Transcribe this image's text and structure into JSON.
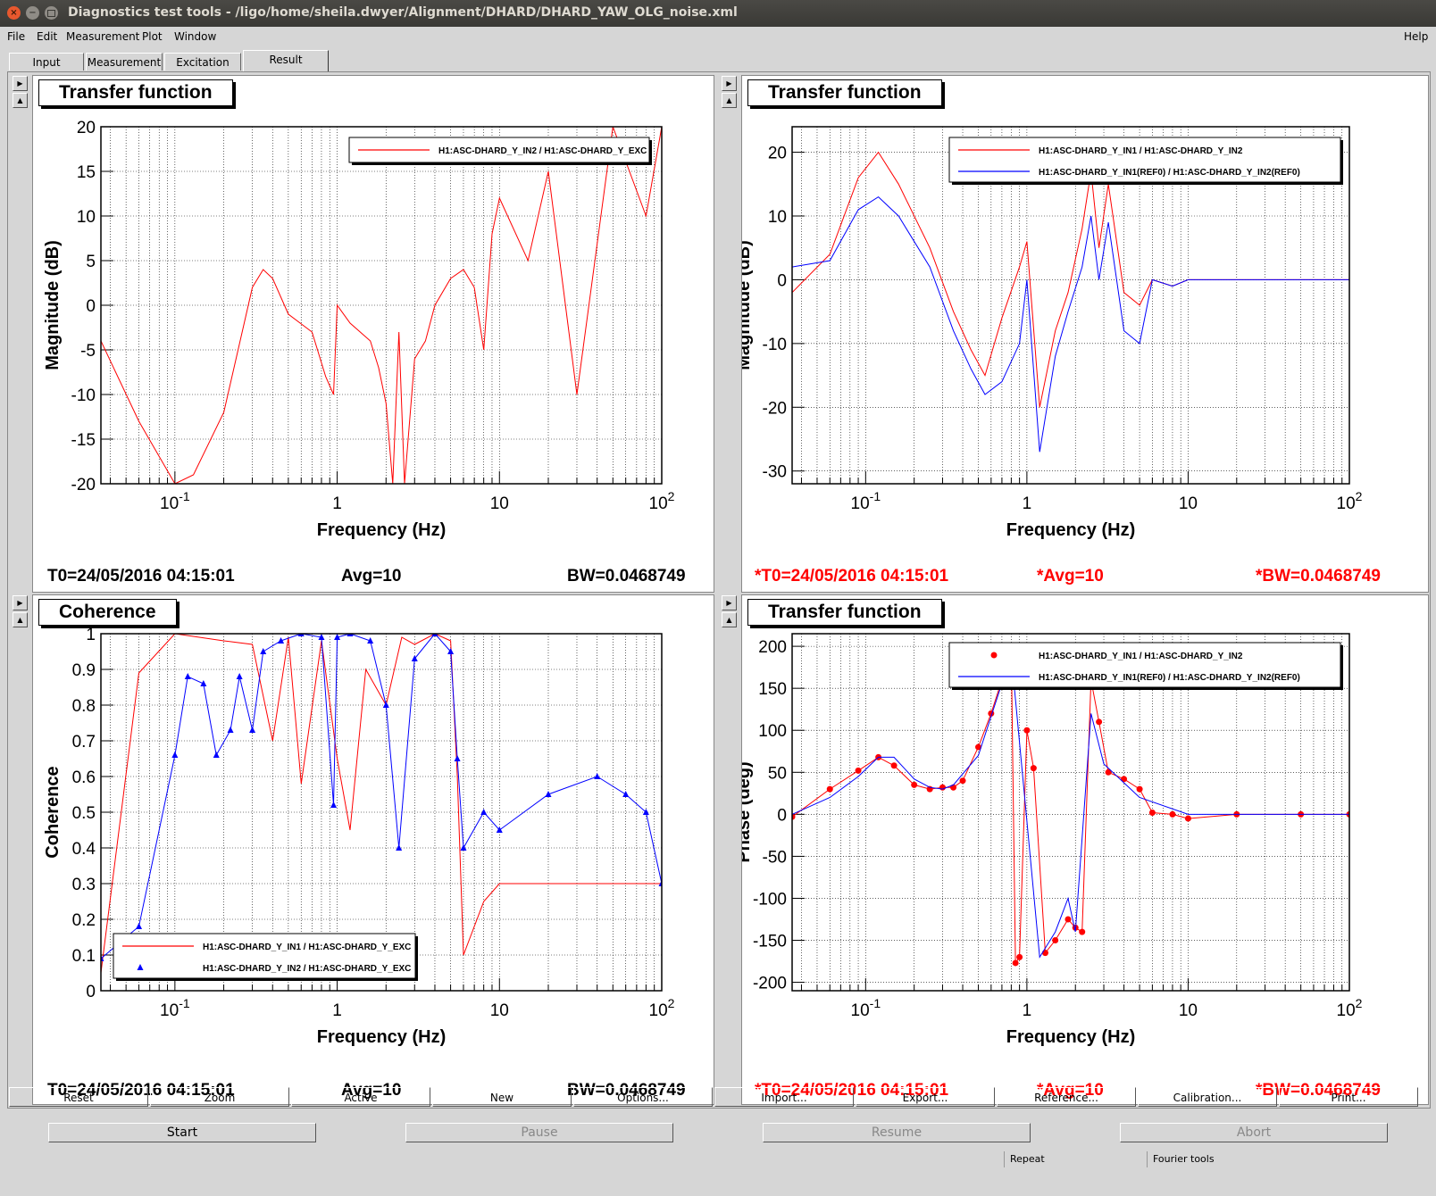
{
  "window": {
    "title": "Diagnostics test tools - /ligo/home/sheila.dwyer/Alignment/DHARD/DHARD_YAW_OLG_noise.xml",
    "close_glyph": "×",
    "minimize_glyph": "−"
  },
  "menu": [
    "File",
    "Edit",
    "Measurement",
    "Plot",
    "Window",
    "Help"
  ],
  "tabs": [
    "Input",
    "Measurement",
    "Excitation",
    "Result"
  ],
  "active_tab": "Result",
  "panels": [
    {
      "title": "Transfer function",
      "t0": "T0=24/05/2016 04:15:01",
      "avg": "Avg=10",
      "bw": "BW=0.0468749",
      "status_color": "#000000",
      "ylabel": "Magnitude (dB)",
      "xlabel": "Frequency (Hz)",
      "legend": [
        "H1:ASC-DHARD_Y_IN2 / H1:ASC-DHARD_Y_EXC"
      ]
    },
    {
      "title": "Transfer function",
      "t0": "*T0=24/05/2016 04:15:01",
      "avg": "*Avg=10",
      "bw": "*BW=0.0468749",
      "status_color": "#ff0000",
      "ylabel": "Magnitude (dB)",
      "xlabel": "Frequency (Hz)",
      "legend": [
        "H1:ASC-DHARD_Y_IN1 / H1:ASC-DHARD_Y_IN2",
        "H1:ASC-DHARD_Y_IN1(REF0) / H1:ASC-DHARD_Y_IN2(REF0)"
      ]
    },
    {
      "title": "Coherence",
      "t0": "T0=24/05/2016 04:15:01",
      "avg": "Avg=10",
      "bw": "BW=0.0468749",
      "status_color": "#000000",
      "ylabel": "Coherence",
      "xlabel": "Frequency (Hz)",
      "legend": [
        "H1:ASC-DHARD_Y_IN1 / H1:ASC-DHARD_Y_EXC",
        "H1:ASC-DHARD_Y_IN2 / H1:ASC-DHARD_Y_EXC"
      ]
    },
    {
      "title": "Transfer function",
      "t0": "*T0=24/05/2016 04:15:01",
      "avg": "*Avg=10",
      "bw": "*BW=0.0468749",
      "status_color": "#ff0000",
      "ylabel": "Phase (deg)",
      "xlabel": "Frequency (Hz)",
      "legend": [
        "H1:ASC-DHARD_Y_IN1 / H1:ASC-DHARD_Y_IN2",
        "H1:ASC-DHARD_Y_IN1(REF0) / H1:ASC-DHARD_Y_IN2(REF0)"
      ]
    }
  ],
  "plot_buttons": [
    "Reset",
    "Zoom",
    "Active",
    "New",
    "Options...",
    "Import...",
    "Export...",
    "Reference...",
    "Calibration...",
    "Print..."
  ],
  "control_buttons": [
    "Start",
    "Pause",
    "Resume",
    "Abort"
  ],
  "status_fields": [
    "Repeat",
    "Fourier tools"
  ],
  "colors": {
    "series_a": "#ff0000",
    "series_b": "#0000ff",
    "frame_bg": "#d6d6d6",
    "titlebar_bg": "#3c3b37"
  },
  "chart_data": [
    {
      "type": "line",
      "title": "Transfer function",
      "xlabel": "Frequency (Hz)",
      "ylabel": "Magnitude (dB)",
      "xscale": "log",
      "xlim": [
        0.035,
        100
      ],
      "ylim": [
        -20,
        20
      ],
      "yticks": [
        -20,
        -15,
        -10,
        -5,
        0,
        5,
        10,
        15,
        20
      ],
      "xtick_labels": [
        "10^-1",
        "1",
        "10",
        "10^2"
      ],
      "legend_position": "top-right",
      "series": [
        {
          "name": "H1:ASC-DHARD_Y_IN2 / H1:ASC-DHARD_Y_EXC",
          "color": "#ff0000",
          "x": [
            0.035,
            0.06,
            0.1,
            0.13,
            0.2,
            0.3,
            0.35,
            0.4,
            0.5,
            0.7,
            0.85,
            0.95,
            1.0,
            1.2,
            1.6,
            1.8,
            2.0,
            2.2,
            2.4,
            2.6,
            3.0,
            3.5,
            4.0,
            5.0,
            6.0,
            7.0,
            8.0,
            9.0,
            10,
            15,
            20,
            30,
            50,
            80,
            100
          ],
          "y": [
            -4,
            -13,
            -20,
            -19,
            -12,
            2,
            4,
            3,
            -1,
            -3,
            -8,
            -10,
            0,
            -2,
            -4,
            -7,
            -11,
            -20,
            -3,
            -20,
            -6,
            -4,
            0,
            3,
            4,
            2,
            -5,
            8,
            12,
            5,
            15,
            -10,
            20,
            10,
            20
          ]
        }
      ]
    },
    {
      "type": "line",
      "title": "Transfer function",
      "xlabel": "Frequency (Hz)",
      "ylabel": "Magnitude (dB)",
      "xscale": "log",
      "xlim": [
        0.035,
        100
      ],
      "ylim": [
        -32,
        24
      ],
      "yticks": [
        -30,
        -20,
        -10,
        0,
        10,
        20
      ],
      "xtick_labels": [
        "10^-1",
        "1",
        "10",
        "10^2"
      ],
      "legend_position": "top-right",
      "series": [
        {
          "name": "H1:ASC-DHARD_Y_IN1 / H1:ASC-DHARD_Y_IN2",
          "color": "#ff0000",
          "x": [
            0.035,
            0.06,
            0.09,
            0.12,
            0.16,
            0.25,
            0.35,
            0.45,
            0.55,
            0.7,
            0.9,
            1.0,
            1.2,
            1.5,
            1.8,
            2.2,
            2.5,
            2.8,
            3.2,
            4.0,
            5.0,
            6.0,
            8.0,
            10,
            20,
            50,
            100
          ],
          "y": [
            -2,
            4,
            16,
            20,
            15,
            5,
            -5,
            -11,
            -15,
            -6,
            2,
            6,
            -20,
            -8,
            -2,
            8,
            17,
            5,
            15,
            -2,
            -4,
            0,
            -1,
            0,
            0,
            0,
            0
          ]
        },
        {
          "name": "H1:ASC-DHARD_Y_IN1(REF0) / H1:ASC-DHARD_Y_IN2(REF0)",
          "color": "#0000ff",
          "x": [
            0.035,
            0.06,
            0.09,
            0.12,
            0.16,
            0.25,
            0.35,
            0.45,
            0.55,
            0.7,
            0.9,
            1.0,
            1.2,
            1.5,
            1.8,
            2.2,
            2.5,
            2.8,
            3.2,
            4.0,
            5.0,
            6.0,
            8.0,
            10,
            20,
            50,
            100
          ],
          "y": [
            2,
            3,
            11,
            13,
            10,
            2,
            -8,
            -14,
            -18,
            -16,
            -10,
            0,
            -27,
            -12,
            -5,
            2,
            10,
            0,
            9,
            -8,
            -10,
            0,
            -1,
            0,
            0,
            0,
            0
          ]
        }
      ]
    },
    {
      "type": "line",
      "title": "Coherence",
      "xlabel": "Frequency (Hz)",
      "ylabel": "Coherence",
      "xscale": "log",
      "xlim": [
        0.035,
        100
      ],
      "ylim": [
        0,
        1
      ],
      "yticks": [
        0,
        0.1,
        0.2,
        0.3,
        0.4,
        0.5,
        0.6,
        0.7,
        0.8,
        0.9,
        1
      ],
      "xtick_labels": [
        "10^-1",
        "1",
        "10",
        "10^2"
      ],
      "legend_position": "bottom-left",
      "series": [
        {
          "name": "H1:ASC-DHARD_Y_IN1 / H1:ASC-DHARD_Y_EXC",
          "color": "#ff0000",
          "x": [
            0.035,
            0.06,
            0.1,
            0.2,
            0.3,
            0.4,
            0.5,
            0.6,
            0.8,
            1.0,
            1.2,
            1.5,
            2.0,
            2.5,
            3.0,
            4.0,
            5.0,
            5.5,
            6.0,
            8.0,
            10,
            20,
            40,
            60,
            80,
            100
          ],
          "y": [
            0.05,
            0.89,
            1.0,
            0.98,
            0.97,
            0.7,
            0.99,
            0.58,
            0.98,
            0.65,
            0.45,
            0.9,
            0.8,
            0.99,
            0.97,
            1.0,
            0.98,
            0.6,
            0.1,
            0.25,
            0.3,
            0.3,
            0.3,
            0.3,
            0.3,
            0.3
          ]
        },
        {
          "name": "H1:ASC-DHARD_Y_IN2 / H1:ASC-DHARD_Y_EXC",
          "color": "#0000ff",
          "x": [
            0.035,
            0.06,
            0.1,
            0.12,
            0.15,
            0.18,
            0.22,
            0.25,
            0.3,
            0.35,
            0.45,
            0.6,
            0.8,
            0.95,
            1.0,
            1.2,
            1.6,
            2.0,
            2.4,
            3.0,
            4.0,
            5.0,
            5.5,
            6.0,
            8.0,
            10,
            20,
            40,
            60,
            80,
            100
          ],
          "y": [
            0.09,
            0.18,
            0.66,
            0.88,
            0.86,
            0.66,
            0.73,
            0.88,
            0.73,
            0.95,
            0.98,
            1.0,
            0.99,
            0.52,
            0.99,
            1.0,
            0.98,
            0.8,
            0.4,
            0.93,
            1.0,
            0.95,
            0.65,
            0.4,
            0.5,
            0.45,
            0.55,
            0.6,
            0.55,
            0.5,
            0.3
          ]
        }
      ]
    },
    {
      "type": "scatter",
      "title": "Transfer function",
      "xlabel": "Frequency (Hz)",
      "ylabel": "Phase (deg)",
      "xscale": "log",
      "xlim": [
        0.035,
        100
      ],
      "ylim": [
        -210,
        215
      ],
      "yticks": [
        -200,
        -150,
        -100,
        -50,
        0,
        50,
        100,
        150,
        200
      ],
      "xtick_labels": [
        "10^-1",
        "1",
        "10",
        "10^2"
      ],
      "legend_position": "top-right",
      "series": [
        {
          "name": "H1:ASC-DHARD_Y_IN1 / H1:ASC-DHARD_Y_IN2",
          "color": "#ff0000",
          "x": [
            0.035,
            0.06,
            0.09,
            0.12,
            0.15,
            0.2,
            0.25,
            0.3,
            0.35,
            0.4,
            0.5,
            0.6,
            0.7,
            0.8,
            0.85,
            0.9,
            1.0,
            1.1,
            1.3,
            1.5,
            1.8,
            2.0,
            2.2,
            2.5,
            2.8,
            3.2,
            4.0,
            5.0,
            6.0,
            8.0,
            10,
            20,
            50,
            100
          ],
          "y": [
            -3,
            30,
            52,
            68,
            58,
            35,
            30,
            32,
            32,
            40,
            80,
            120,
            160,
            195,
            -177,
            -170,
            100,
            55,
            -165,
            -150,
            -125,
            -135,
            -140,
            160,
            110,
            50,
            42,
            30,
            2,
            0,
            -5,
            0,
            0,
            0
          ]
        },
        {
          "name": "H1:ASC-DHARD_Y_IN1(REF0) / H1:ASC-DHARD_Y_IN2(REF0)",
          "color": "#0000ff",
          "x": [
            0.035,
            0.06,
            0.09,
            0.12,
            0.15,
            0.2,
            0.25,
            0.3,
            0.35,
            0.5,
            0.8,
            1.2,
            1.5,
            1.8,
            2.0,
            2.5,
            3.0,
            5.0,
            10,
            100
          ],
          "y": [
            0,
            20,
            45,
            68,
            68,
            42,
            32,
            30,
            35,
            70,
            190,
            -170,
            -140,
            -100,
            -140,
            120,
            60,
            20,
            0,
            0
          ]
        }
      ]
    }
  ]
}
